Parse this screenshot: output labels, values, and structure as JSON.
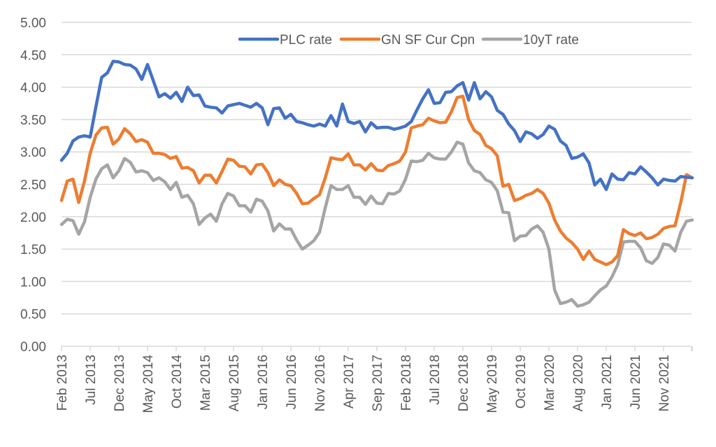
{
  "chart_data": {
    "type": "line",
    "title": "",
    "xlabel": "",
    "ylabel": "",
    "ylim": [
      0,
      5
    ],
    "yticks": [
      "0.00",
      "0.50",
      "1.00",
      "1.50",
      "2.00",
      "2.50",
      "3.00",
      "3.50",
      "4.00",
      "4.50",
      "5.00"
    ],
    "grid": true,
    "legend_position": "top-right",
    "x_start": "Feb 2013",
    "x_frequency": "monthly",
    "x_tick_labels": [
      "Feb 2013",
      "Jul 2013",
      "Dec 2013",
      "May 2014",
      "Oct 2014",
      "Mar 2015",
      "Aug 2015",
      "Jan 2016",
      "Jun 2016",
      "Nov 2016",
      "Apr 2017",
      "Sep 2017",
      "Feb 2018",
      "Jul 2018",
      "Dec 2018",
      "May 2019",
      "Oct 2019",
      "Mar 2020",
      "Aug 2020",
      "Jan 2021",
      "Jun 2021",
      "Nov 2021"
    ],
    "x_tick_interval_months": 5,
    "series": [
      {
        "name": "PLC rate",
        "color": "#4472C4",
        "values": [
          2.87,
          2.98,
          3.17,
          3.23,
          3.25,
          3.23,
          3.7,
          4.15,
          4.22,
          4.4,
          4.39,
          4.35,
          4.34,
          4.28,
          4.12,
          4.35,
          4.1,
          3.85,
          3.9,
          3.83,
          3.92,
          3.78,
          4.0,
          3.87,
          3.88,
          3.71,
          3.69,
          3.68,
          3.6,
          3.71,
          3.73,
          3.75,
          3.72,
          3.69,
          3.75,
          3.68,
          3.42,
          3.67,
          3.68,
          3.52,
          3.58,
          3.47,
          3.45,
          3.42,
          3.4,
          3.43,
          3.4,
          3.56,
          3.4,
          3.74,
          3.47,
          3.44,
          3.47,
          3.31,
          3.45,
          3.37,
          3.38,
          3.38,
          3.35,
          3.37,
          3.4,
          3.47,
          3.65,
          3.82,
          3.96,
          3.75,
          3.76,
          3.92,
          3.93,
          4.02,
          4.07,
          3.8,
          4.07,
          3.82,
          3.93,
          3.85,
          3.64,
          3.58,
          3.43,
          3.33,
          3.16,
          3.31,
          3.28,
          3.21,
          3.27,
          3.4,
          3.35,
          3.17,
          3.1,
          2.9,
          2.92,
          2.97,
          2.83,
          2.49,
          2.58,
          2.42,
          2.66,
          2.58,
          2.57,
          2.68,
          2.66,
          2.77,
          2.69,
          2.6,
          2.49,
          2.58,
          2.56,
          2.55,
          2.62,
          2.61,
          2.6
        ]
      },
      {
        "name": "GN SF Cur Cpn",
        "color": "#ED7D31",
        "values": [
          2.25,
          2.55,
          2.58,
          2.22,
          2.55,
          2.98,
          3.26,
          3.37,
          3.38,
          3.12,
          3.2,
          3.36,
          3.28,
          3.16,
          3.19,
          3.15,
          2.98,
          2.98,
          2.96,
          2.9,
          2.93,
          2.75,
          2.76,
          2.71,
          2.52,
          2.64,
          2.64,
          2.52,
          2.7,
          2.89,
          2.87,
          2.78,
          2.77,
          2.66,
          2.8,
          2.81,
          2.68,
          2.48,
          2.57,
          2.5,
          2.48,
          2.36,
          2.2,
          2.21,
          2.28,
          2.34,
          2.6,
          2.91,
          2.89,
          2.88,
          2.97,
          2.8,
          2.8,
          2.72,
          2.82,
          2.72,
          2.71,
          2.79,
          2.82,
          2.86,
          3.0,
          3.37,
          3.4,
          3.42,
          3.52,
          3.48,
          3.45,
          3.46,
          3.62,
          3.84,
          3.86,
          3.5,
          3.33,
          3.27,
          3.1,
          3.05,
          2.94,
          2.47,
          2.5,
          2.25,
          2.28,
          2.33,
          2.36,
          2.42,
          2.36,
          2.21,
          1.95,
          1.78,
          1.67,
          1.6,
          1.5,
          1.34,
          1.47,
          1.34,
          1.3,
          1.26,
          1.3,
          1.4,
          1.8,
          1.74,
          1.71,
          1.75,
          1.66,
          1.68,
          1.73,
          1.82,
          1.85,
          1.86,
          2.22,
          2.65,
          2.6
        ]
      },
      {
        "name": "10yT rate",
        "color": "#A5A5A5",
        "values": [
          1.88,
          1.96,
          1.94,
          1.73,
          1.92,
          2.3,
          2.58,
          2.74,
          2.8,
          2.6,
          2.71,
          2.9,
          2.84,
          2.69,
          2.71,
          2.68,
          2.56,
          2.6,
          2.54,
          2.42,
          2.53,
          2.3,
          2.33,
          2.2,
          1.88,
          1.98,
          2.04,
          1.93,
          2.2,
          2.36,
          2.32,
          2.17,
          2.17,
          2.07,
          2.27,
          2.24,
          2.09,
          1.78,
          1.89,
          1.81,
          1.81,
          1.64,
          1.5,
          1.56,
          1.63,
          1.76,
          2.14,
          2.48,
          2.42,
          2.42,
          2.48,
          2.3,
          2.3,
          2.19,
          2.32,
          2.21,
          2.2,
          2.36,
          2.35,
          2.4,
          2.58,
          2.86,
          2.85,
          2.87,
          2.98,
          2.91,
          2.89,
          2.89,
          3.0,
          3.15,
          3.12,
          2.83,
          2.71,
          2.68,
          2.57,
          2.53,
          2.4,
          2.07,
          2.06,
          1.63,
          1.7,
          1.71,
          1.81,
          1.86,
          1.76,
          1.5,
          0.87,
          0.66,
          0.68,
          0.72,
          0.62,
          0.64,
          0.68,
          0.78,
          0.87,
          0.93,
          1.07,
          1.26,
          1.61,
          1.62,
          1.62,
          1.52,
          1.32,
          1.28,
          1.37,
          1.58,
          1.56,
          1.47,
          1.76,
          1.93,
          1.95
        ]
      }
    ]
  }
}
